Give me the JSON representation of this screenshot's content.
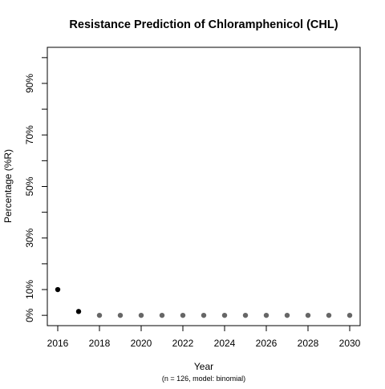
{
  "chart_data": {
    "type": "scatter",
    "title": "Resistance Prediction of Chloramphenicol (CHL)",
    "xlabel": "Year",
    "ylabel": "Percentage (%R)",
    "footnote": "(n = 126, model: binomial)",
    "xlim": [
      2015.5,
      2030.5
    ],
    "ylim": [
      -0.04,
      1.04
    ],
    "x_ticks": [
      2016,
      2018,
      2020,
      2022,
      2024,
      2026,
      2028,
      2030
    ],
    "x_tick_labels": [
      "2016",
      "2018",
      "2020",
      "2022",
      "2024",
      "2026",
      "2028",
      "2030"
    ],
    "y_ticks": [
      0,
      0.1,
      0.2,
      0.3,
      0.4,
      0.5,
      0.6,
      0.7,
      0.8,
      0.9,
      1.0
    ],
    "y_tick_labels": [
      "0%",
      "10%",
      "",
      "30%",
      "",
      "50%",
      "",
      "70%",
      "",
      "90%",
      ""
    ],
    "grid": false,
    "legend": "none",
    "series": [
      {
        "kind": "observed",
        "color": "#000000",
        "x": [
          2016,
          2017
        ],
        "y": [
          0.1,
          0.015
        ]
      },
      {
        "kind": "predicted",
        "color": "#666666",
        "x": [
          2018,
          2019,
          2020,
          2021,
          2022,
          2023,
          2024,
          2025,
          2026,
          2027,
          2028,
          2029,
          2030
        ],
        "y": [
          0.0,
          0.0,
          0.0,
          0.0,
          0.0,
          0.0,
          0.0,
          0.0,
          0.0,
          0.0,
          0.0,
          0.0,
          0.0
        ]
      }
    ]
  }
}
